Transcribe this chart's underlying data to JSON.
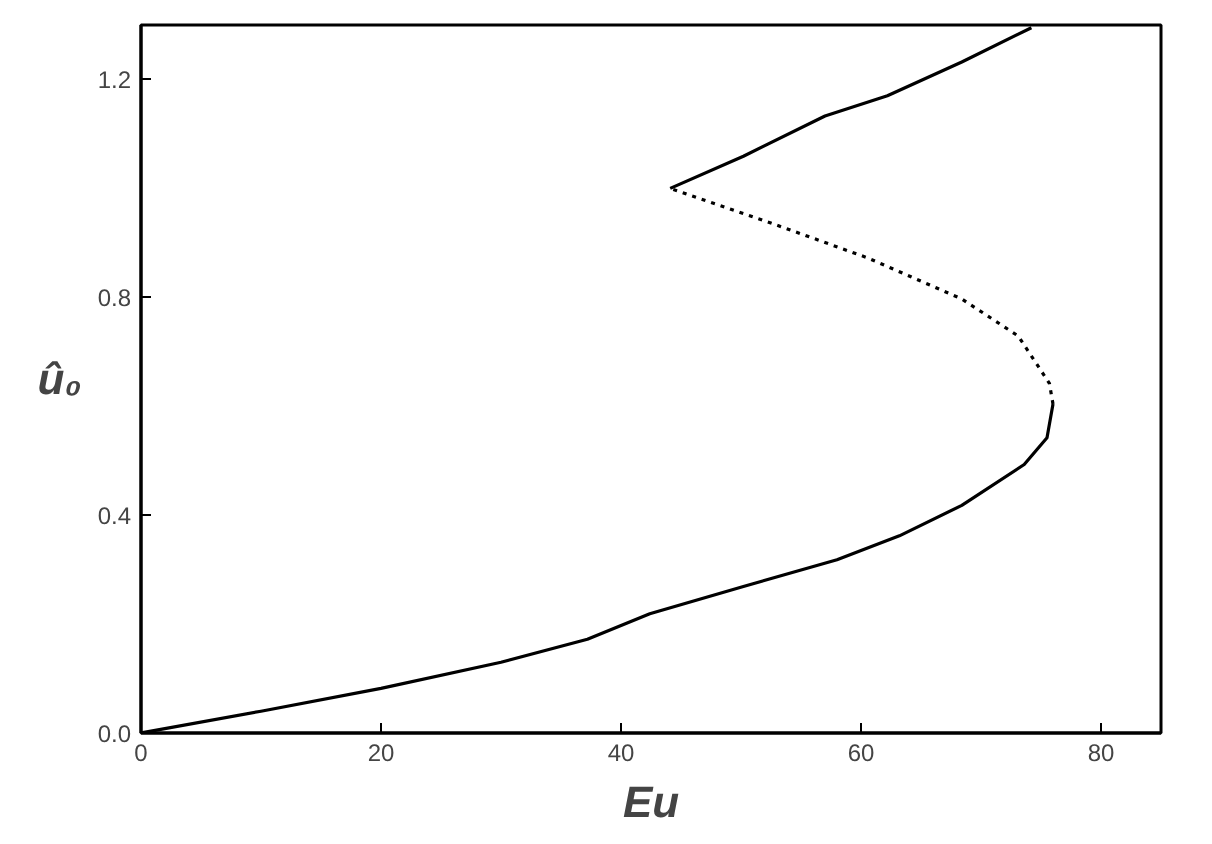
{
  "chart_data": {
    "type": "line",
    "xlabel": "Eu",
    "ylabel": "û₀",
    "xlim": [
      0,
      85
    ],
    "ylim": [
      0,
      1.3
    ],
    "xticks": [
      0,
      20,
      40,
      60,
      80
    ],
    "yticks": [
      {
        "value": 0,
        "label": "0.0"
      },
      0.4,
      0.8,
      1.2
    ],
    "grid": false,
    "series": [
      {
        "color": "#000000",
        "line_style": "solid",
        "x": [
          0,
          10,
          20,
          30,
          37.2,
          42.4,
          50.2,
          58,
          63.2,
          68.4,
          73.6,
          75.5,
          76.0
        ],
        "values": [
          0,
          0.04,
          0.082,
          0.13,
          0.172,
          0.219,
          0.269,
          0.318,
          0.362,
          0.418,
          0.493,
          0.542,
          0.604
        ]
      },
      {
        "color": "#000000",
        "line_style": "dotted",
        "x": [
          76.0,
          75.7,
          73.1,
          68.4,
          60.6,
          52.8,
          44.1
        ],
        "values": [
          0.604,
          0.642,
          0.729,
          0.797,
          0.872,
          0.934,
          1.0
        ]
      },
      {
        "color": "#000000",
        "line_style": "solid",
        "x": [
          44.1,
          50.2,
          57,
          62.2,
          68.4,
          74.2
        ],
        "values": [
          1.0,
          1.059,
          1.133,
          1.17,
          1.232,
          1.295
        ]
      }
    ]
  }
}
